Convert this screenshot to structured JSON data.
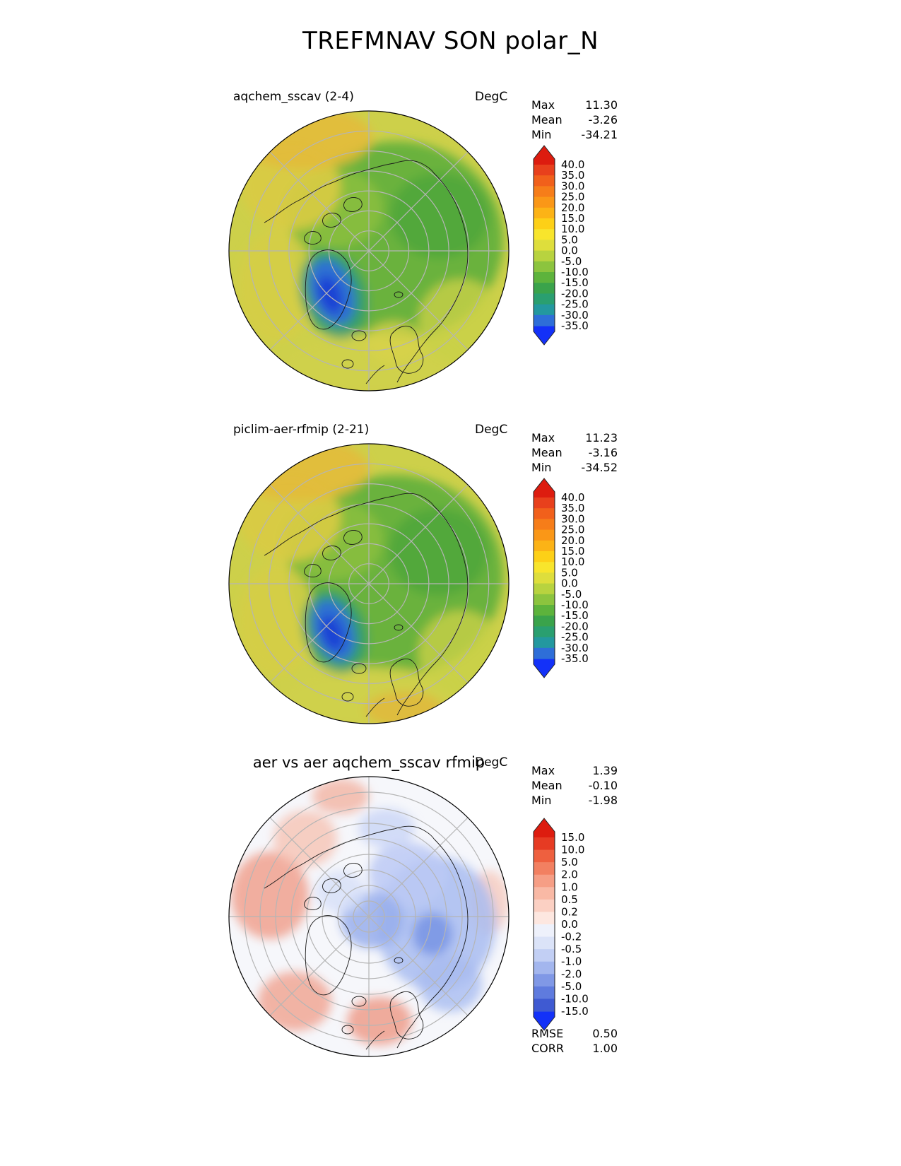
{
  "page": {
    "title": "TREFMNAV SON polar_N"
  },
  "panels": [
    {
      "title": "aqchem_sscav (2-4)",
      "units": "DegC",
      "stats": [
        {
          "label": "Max",
          "value": "11.30"
        },
        {
          "label": "Mean",
          "value": "-3.26"
        },
        {
          "label": "Min",
          "value": "-34.21"
        }
      ],
      "colorbar": {
        "ticks": [
          "40.0",
          "35.0",
          "30.0",
          "25.0",
          "20.0",
          "15.0",
          "10.0",
          "5.0",
          "0.0",
          "-5.0",
          "-10.0",
          "-15.0",
          "-20.0",
          "-25.0",
          "-30.0",
          "-35.0"
        ],
        "colors": [
          "#e8401c",
          "#f1601b",
          "#f67d19",
          "#fa9717",
          "#fcb316",
          "#fdd017",
          "#f8e52c",
          "#dede3c",
          "#b8d33f",
          "#8cc43e",
          "#5db33c",
          "#3aa34b",
          "#2a9f70",
          "#23989f",
          "#2e6ed8"
        ],
        "cap_top": "#dd1c0f",
        "cap_bottom": "#1331f8"
      }
    },
    {
      "title": "piclim-aer-rfmip (2-21)",
      "units": "DegC",
      "stats": [
        {
          "label": "Max",
          "value": "11.23"
        },
        {
          "label": "Mean",
          "value": "-3.16"
        },
        {
          "label": "Min",
          "value": "-34.52"
        }
      ],
      "colorbar": {
        "ticks": [
          "40.0",
          "35.0",
          "30.0",
          "25.0",
          "20.0",
          "15.0",
          "10.0",
          "5.0",
          "0.0",
          "-5.0",
          "-10.0",
          "-15.0",
          "-20.0",
          "-25.0",
          "-30.0",
          "-35.0"
        ],
        "colors": [
          "#e8401c",
          "#f1601b",
          "#f67d19",
          "#fa9717",
          "#fcb316",
          "#fdd017",
          "#f8e52c",
          "#dede3c",
          "#b8d33f",
          "#8cc43e",
          "#5db33c",
          "#3aa34b",
          "#2a9f70",
          "#23989f",
          "#2e6ed8"
        ],
        "cap_top": "#dd1c0f",
        "cap_bottom": "#1331f8"
      }
    },
    {
      "title": "aer vs aer aqchem_sscav rfmip",
      "units": "DegC",
      "stats": [
        {
          "label": "Max",
          "value": "1.39"
        },
        {
          "label": "Mean",
          "value": "-0.10"
        },
        {
          "label": "Min",
          "value": "-1.98"
        }
      ],
      "colorbar": {
        "ticks": [
          "15.0",
          "10.0",
          "5.0",
          "2.0",
          "1.0",
          "0.5",
          "0.2",
          "0.0",
          "-0.2",
          "-0.5",
          "-1.0",
          "-2.0",
          "-5.0",
          "-10.0",
          "-15.0"
        ],
        "colors": [
          "#e63b23",
          "#ee603f",
          "#f28061",
          "#f69e85",
          "#f9b9a5",
          "#fbd0c3",
          "#fde7e0",
          "#eef1fb",
          "#dbe3f8",
          "#c2cff4",
          "#a3b6ee",
          "#8098e6",
          "#5f7bde",
          "#3f5ad2"
        ],
        "cap_top": "#dd1c0f",
        "cap_bottom": "#1331f8"
      },
      "extra_stats": [
        {
          "label": "RMSE",
          "value": "0.50"
        },
        {
          "label": "CORR",
          "value": "1.00"
        }
      ]
    }
  ],
  "chart_data": [
    {
      "type": "heatmap",
      "subtype": "polar_stereographic_map_north",
      "title": "aqchem_sscav (2-4)",
      "variable": "TREFMNAV",
      "season": "SON",
      "region": "polar_N",
      "units": "DegC",
      "stats": {
        "max": 11.3,
        "mean": -3.26,
        "min": -34.21
      },
      "contour_levels": [
        -35,
        -30,
        -25,
        -20,
        -15,
        -10,
        -5,
        0,
        5,
        10,
        15,
        20,
        25,
        30,
        35,
        40
      ],
      "colorbar_extend": "both",
      "legend_position": "right",
      "grid": "polar graticule, latitude circles and 45-degree meridians"
    },
    {
      "type": "heatmap",
      "subtype": "polar_stereographic_map_north",
      "title": "piclim-aer-rfmip (2-21)",
      "variable": "TREFMNAV",
      "season": "SON",
      "region": "polar_N",
      "units": "DegC",
      "stats": {
        "max": 11.23,
        "mean": -3.16,
        "min": -34.52
      },
      "contour_levels": [
        -35,
        -30,
        -25,
        -20,
        -15,
        -10,
        -5,
        0,
        5,
        10,
        15,
        20,
        25,
        30,
        35,
        40
      ],
      "colorbar_extend": "both",
      "legend_position": "right",
      "grid": "polar graticule, latitude circles and 45-degree meridians"
    },
    {
      "type": "heatmap",
      "subtype": "polar_stereographic_map_north_difference",
      "title": "aer vs aer aqchem_sscav rfmip",
      "variable": "TREFMNAV difference",
      "season": "SON",
      "region": "polar_N",
      "units": "DegC",
      "stats": {
        "max": 1.39,
        "mean": -0.1,
        "min": -1.98
      },
      "rmse": 0.5,
      "corr": 1.0,
      "contour_levels": [
        -15,
        -10,
        -5,
        -2,
        -1,
        -0.5,
        -0.2,
        0,
        0.2,
        0.5,
        1,
        2,
        5,
        10,
        15
      ],
      "colorbar_extend": "both",
      "legend_position": "right",
      "grid": "polar graticule, latitude circles and 45-degree meridians"
    }
  ]
}
